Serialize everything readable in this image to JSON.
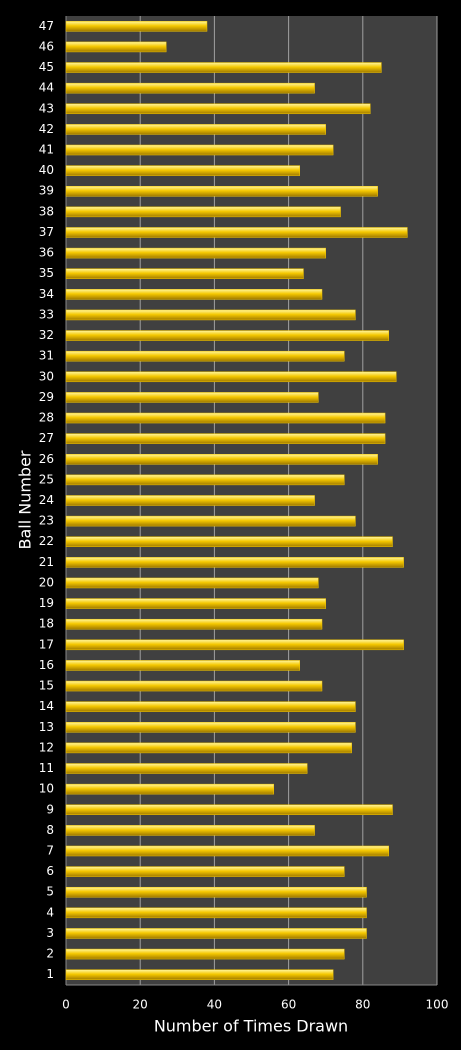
{
  "chart_data": {
    "type": "barh",
    "x_label": "Number of Times Drawn",
    "y_label": "Ball Number",
    "categories": [
      "1",
      "2",
      "3",
      "4",
      "5",
      "6",
      "7",
      "8",
      "9",
      "10",
      "11",
      "12",
      "13",
      "14",
      "15",
      "16",
      "17",
      "18",
      "19",
      "20",
      "21",
      "22",
      "23",
      "24",
      "25",
      "26",
      "27",
      "28",
      "29",
      "30",
      "31",
      "32",
      "33",
      "34",
      "35",
      "36",
      "37",
      "38",
      "39",
      "40",
      "41",
      "42",
      "43",
      "44",
      "45",
      "46",
      "47"
    ],
    "values": [
      72,
      75,
      81,
      81,
      81,
      75,
      87,
      67,
      88,
      56,
      65,
      77,
      78,
      78,
      69,
      63,
      91,
      69,
      70,
      68,
      91,
      88,
      78,
      67,
      75,
      84,
      86,
      86,
      68,
      89,
      75,
      87,
      78,
      69,
      64,
      70,
      92,
      74,
      84,
      63,
      72,
      70,
      82,
      67,
      85,
      27,
      38
    ],
    "color": "#f5c800",
    "xlim": [
      0,
      100
    ],
    "xticks": [
      0,
      20,
      40,
      60,
      80,
      100
    ],
    "grid": true
  }
}
